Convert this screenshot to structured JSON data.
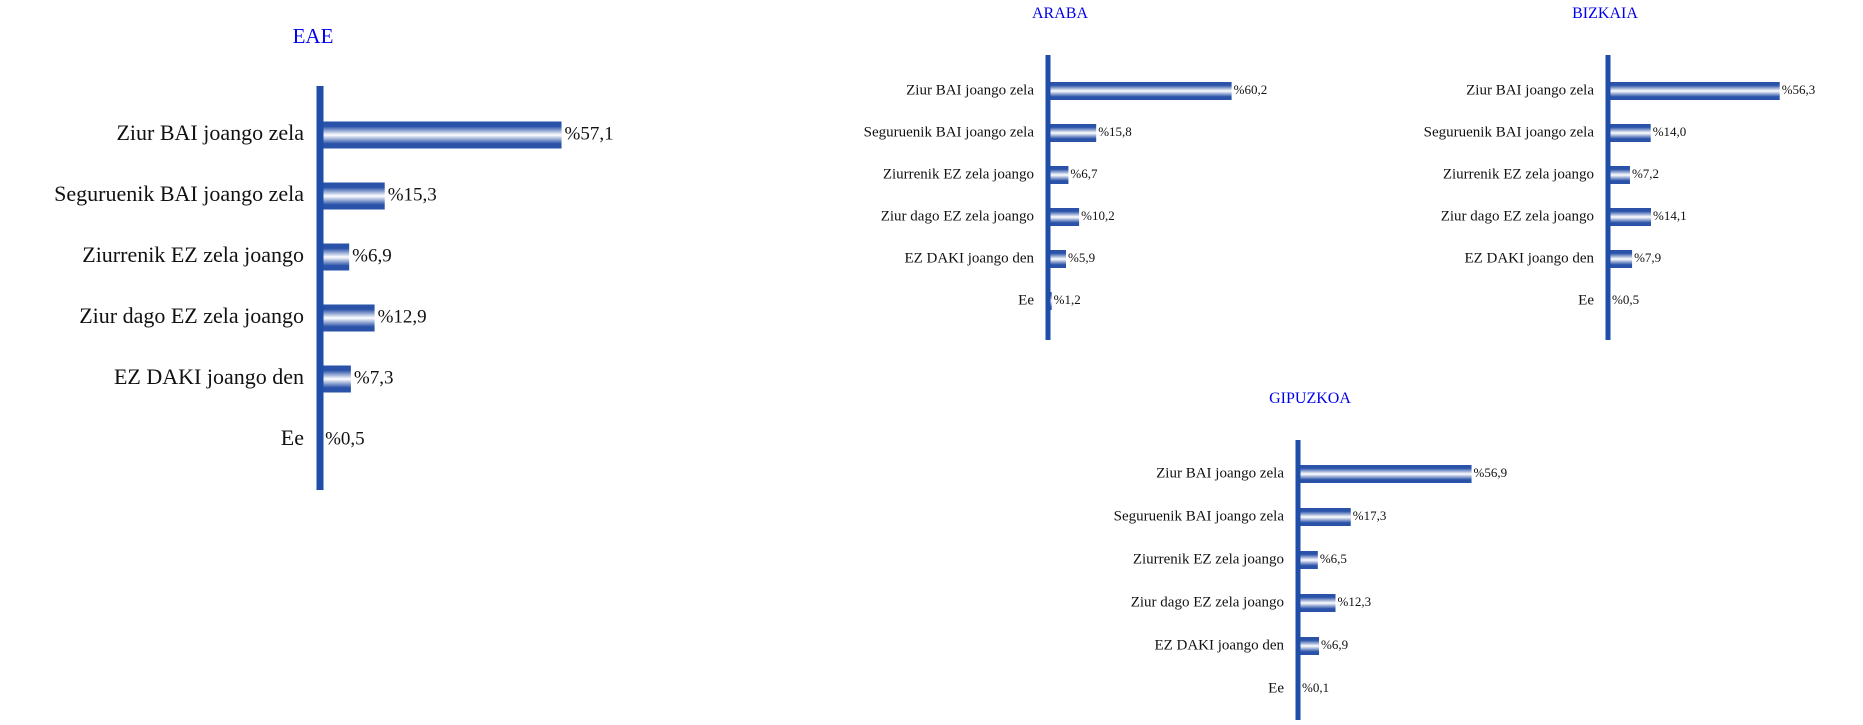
{
  "colors": {
    "title": "#0000ee",
    "axis": "#1f4ea8",
    "bar_dark": "#2a52a8",
    "bar_light": "#ffffff",
    "text": "#111111"
  },
  "chart_data": [
    {
      "type": "bar",
      "orientation": "horizontal",
      "title": "EAE",
      "categories": [
        "Ziur BAI joango zela",
        "Seguruenik BAI joango zela",
        "Ziurrenik EZ zela joango",
        "Ziur dago EZ zela joango",
        "EZ DAKI joango den",
        "Ee"
      ],
      "values": [
        57.1,
        15.3,
        6.9,
        12.9,
        7.3,
        0.5
      ],
      "data_labels": [
        "%57,1",
        "%15,3",
        "%6,9",
        "%12,9",
        "%7,3",
        "%0,5"
      ],
      "xlim": [
        0,
        100
      ]
    },
    {
      "type": "bar",
      "orientation": "horizontal",
      "title": "ARABA",
      "categories": [
        "Ziur BAI joango zela",
        "Seguruenik BAI joango zela",
        "Ziurrenik EZ zela joango",
        "Ziur dago EZ zela joango",
        "EZ DAKI joango den",
        "Ee"
      ],
      "values": [
        60.2,
        15.8,
        6.7,
        10.2,
        5.9,
        1.2
      ],
      "data_labels": [
        "%60,2",
        "%15,8",
        "%6,7",
        "%10,2",
        "%5,9",
        "%1,2"
      ],
      "xlim": [
        0,
        100
      ]
    },
    {
      "type": "bar",
      "orientation": "horizontal",
      "title": "BIZKAIA",
      "categories": [
        "Ziur BAI joango zela",
        "Seguruenik BAI joango zela",
        "Ziurrenik EZ zela joango",
        "Ziur dago EZ zela joango",
        "EZ DAKI joango den",
        "Ee"
      ],
      "values": [
        56.3,
        14.0,
        7.2,
        14.1,
        7.9,
        0.5
      ],
      "data_labels": [
        "%56,3",
        "%14,0",
        "%7,2",
        "%14,1",
        "%7,9",
        "%0,5"
      ],
      "xlim": [
        0,
        100
      ]
    },
    {
      "type": "bar",
      "orientation": "horizontal",
      "title": "GIPUZKOA",
      "categories": [
        "Ziur BAI joango zela",
        "Seguruenik BAI joango zela",
        "Ziurrenik EZ zela joango",
        "Ziur dago EZ zela joango",
        "EZ DAKI joango den",
        "Ee"
      ],
      "values": [
        56.9,
        17.3,
        6.5,
        12.3,
        6.9,
        0.1
      ],
      "data_labels": [
        "%56,9",
        "%17,3",
        "%6,5",
        "%12,3",
        "%6,9",
        "%0,1"
      ],
      "xlim": [
        0,
        100
      ]
    }
  ]
}
